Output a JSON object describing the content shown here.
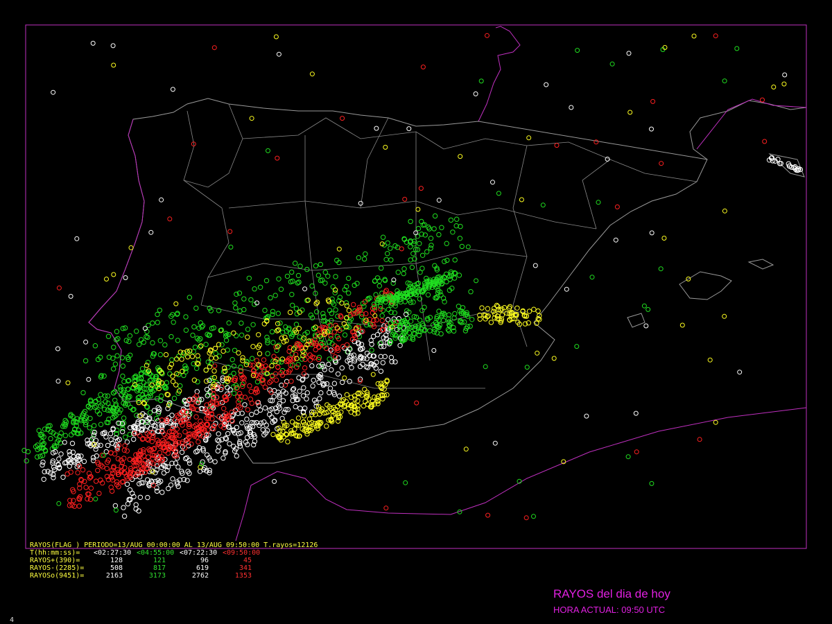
{
  "header": {
    "line": "RAYOS(FLAG ) PERIODO=13/AUG 00:00:00 AL 13/AUG 09:50:00  T.rayos=12126"
  },
  "table": {
    "header_label": "T(hh:mm:ss)=",
    "periods": [
      "<02:27:30",
      "<04:55:00",
      "<07:22:30",
      "<09:50:00"
    ],
    "rows": [
      {
        "label": "RAYOS+(390)=",
        "values": [
          128,
          121,
          96,
          45
        ]
      },
      {
        "label": "RAYOS-(2285)=",
        "values": [
          508,
          817,
          619,
          341
        ]
      },
      {
        "label": "RAYOSo(9451)=",
        "values": [
          2163,
          3173,
          2762,
          1353
        ]
      }
    ]
  },
  "legend": {
    "title": "RAYOS del dia de hoy",
    "time": "HORA ACTUAL: 09:50 UTC"
  },
  "page_number": "4"
}
